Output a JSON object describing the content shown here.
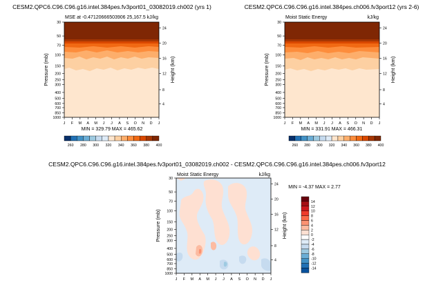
{
  "panels": [
    {
      "title": "CESM2.QPC6.C96.C96.g16.intel.384pes.fv3port01_03082019.ch002 (yrs 1)",
      "left_label": "MSE at -0.47120666503906 25,167.5",
      "right_label": "kJ/kg",
      "stats": "MIN = 329.79 MAX = 465.62"
    },
    {
      "title": "CESM2.QPC6.C96.C96.g16.intel.384pes.ch006.fv3port12 (yrs 2-6)",
      "left_label": "Moist Static Energy",
      "right_label": "kJ/kg",
      "stats": "MIN = 331.91 MAX = 466.31"
    },
    {
      "title": "CESM2.QPC6.C96.C96.g16.intel.384pes.fv3port01_03082019.ch002 - CESM2.QPC6.C96.C96.g16.intel.384pes.ch006.fv3port12",
      "left_label": "Moist Static Energy",
      "right_label": "kJ/kg",
      "stats": "MIN = -4.37 MAX = 2.77"
    }
  ],
  "axes": {
    "ylabel": "Pressure (mb)",
    "ylabel_right": "Height (km)",
    "pressure_ticks": [
      "30",
      "50",
      "70",
      "100",
      "150",
      "200",
      "250",
      "300",
      "400",
      "500",
      "600",
      "700",
      "850",
      "1000"
    ],
    "height_ticks_top": [
      "24",
      "20",
      "16",
      "12",
      "8",
      "4"
    ],
    "height_ticks_diff": [
      "24",
      "20",
      "16",
      "12",
      "8",
      "4"
    ],
    "month_ticks": [
      "J",
      "F",
      "M",
      "A",
      "M",
      "J",
      "J",
      "A",
      "S",
      "O",
      "N",
      "D",
      "J"
    ]
  },
  "colorbar_abs": {
    "labels": [
      "260",
      "280",
      "300",
      "320",
      "340",
      "360",
      "380",
      "400"
    ],
    "colors": [
      "#08306b",
      "#2171b5",
      "#4292c6",
      "#6baed6",
      "#9ecae1",
      "#c6dbef",
      "#deebf7",
      "#fee6ce",
      "#fdd0a2",
      "#fdae6b",
      "#fd8d3c",
      "#f16913",
      "#d94801",
      "#a63603",
      "#7f2704"
    ]
  },
  "colorbar_diff": {
    "labels": [
      "14",
      "12",
      "10",
      "8",
      "6",
      "4",
      "2",
      "0",
      "-2",
      "-4",
      "-6",
      "-8",
      "-10",
      "-12",
      "-14"
    ],
    "colors": [
      "#67000d",
      "#a50f15",
      "#cb181d",
      "#ef3b2c",
      "#fb6a4a",
      "#fc9272",
      "#fcbba1",
      "#fee0d2",
      "#ffffff",
      "#deebf7",
      "#c6dbef",
      "#9ecae1",
      "#6baed6",
      "#4292c6",
      "#2171b5",
      "#08519c"
    ]
  },
  "chart_data": [
    {
      "type": "heatmap",
      "title": "CESM2.QPC6.C96.C96.g16.intel.384pes.fv3port01_03082019.ch002 (yrs 1)",
      "xlabel": "",
      "ylabel": "Pressure (mb)",
      "ylabel_right": "Height (km)",
      "x": [
        "J",
        "F",
        "M",
        "A",
        "M",
        "J",
        "J",
        "A",
        "S",
        "O",
        "N",
        "D",
        "J"
      ],
      "y_levels_mb": [
        30,
        50,
        70,
        100,
        150,
        200,
        250,
        300,
        400,
        500,
        600,
        700,
        850,
        1000
      ],
      "units": "kJ/kg",
      "min": 329.79,
      "max": 465.62,
      "colorbar_levels": [
        260,
        280,
        300,
        320,
        340,
        360,
        380,
        400
      ]
    },
    {
      "type": "heatmap",
      "title": "CESM2.QPC6.C96.C96.g16.intel.384pes.ch006.fv3port12 (yrs 2-6)",
      "xlabel": "",
      "ylabel": "Pressure (mb)",
      "ylabel_right": "Height (km)",
      "x": [
        "J",
        "F",
        "M",
        "A",
        "M",
        "J",
        "J",
        "A",
        "S",
        "O",
        "N",
        "D",
        "J"
      ],
      "y_levels_mb": [
        30,
        50,
        70,
        100,
        150,
        200,
        250,
        300,
        400,
        500,
        600,
        700,
        850,
        1000
      ],
      "units": "kJ/kg",
      "min": 331.91,
      "max": 466.31,
      "colorbar_levels": [
        260,
        280,
        300,
        320,
        340,
        360,
        380,
        400
      ]
    },
    {
      "type": "heatmap",
      "title": "CESM2.QPC6.C96.C96.g16.intel.384pes.fv3port01_03082019.ch002 - CESM2.QPC6.C96.C96.g16.intel.384pes.ch006.fv3port12",
      "xlabel": "",
      "ylabel": "Pressure (mb)",
      "ylabel_right": "Height (km)",
      "x": [
        "J",
        "F",
        "M",
        "A",
        "M",
        "J",
        "J",
        "A",
        "S",
        "O",
        "N",
        "D",
        "J"
      ],
      "y_levels_mb": [
        30,
        50,
        70,
        100,
        150,
        200,
        250,
        300,
        400,
        500,
        600,
        700,
        850,
        1000
      ],
      "units": "kJ/kg",
      "min": -4.37,
      "max": 2.77,
      "colorbar_levels": [
        14,
        12,
        10,
        8,
        6,
        4,
        2,
        0,
        -2,
        -4,
        -6,
        -8,
        -10,
        -12,
        -14
      ]
    }
  ]
}
